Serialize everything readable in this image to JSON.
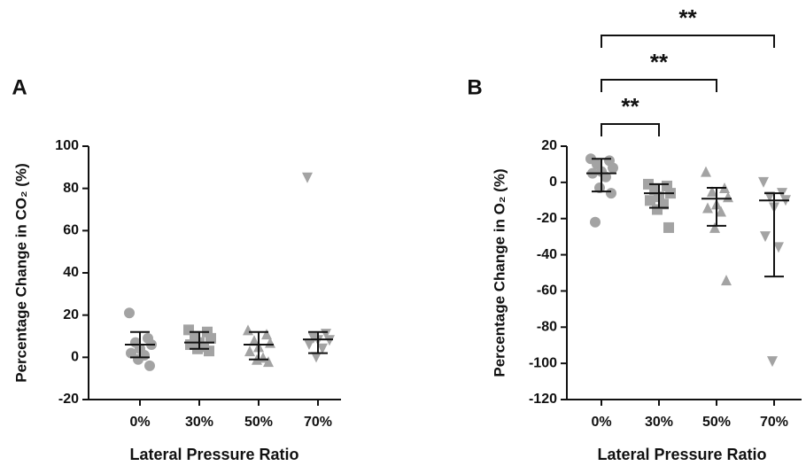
{
  "chart_data": [
    {
      "type": "dot",
      "panel_label": "A",
      "y_label": "Percentage Change in CO₂ (%)",
      "x_label": "Lateral Pressure Ratio",
      "categories": [
        "0%",
        "30%",
        "50%",
        "70%"
      ],
      "markers": [
        "circle",
        "square",
        "triangle-up",
        "triangle-down"
      ],
      "color": "#a3a3a3",
      "points": [
        [
          21,
          9,
          7,
          6,
          4,
          2,
          1,
          -1,
          -4
        ],
        [
          13,
          12,
          10,
          9,
          7,
          6,
          5,
          4,
          3
        ],
        [
          13,
          11,
          8,
          7,
          5,
          3,
          0,
          -1,
          -2
        ],
        [
          85,
          11,
          9,
          8,
          8,
          6,
          4,
          0
        ]
      ],
      "medians": [
        6,
        7,
        6,
        8.5
      ],
      "lower": [
        0,
        4,
        -1,
        2
      ],
      "upper": [
        12,
        12,
        12,
        12
      ],
      "ylim": [
        -20,
        100
      ],
      "yticks": [
        -20,
        0,
        20,
        40,
        60,
        80,
        100
      ],
      "annotations": []
    },
    {
      "type": "dot",
      "panel_label": "B",
      "y_label": "Percentage Change in O₂ (%)",
      "x_label": "Lateral Pressure Ratio",
      "categories": [
        "0%",
        "30%",
        "50%",
        "70%"
      ],
      "markers": [
        "circle",
        "square",
        "triangle-up",
        "triangle-down"
      ],
      "color": "#a3a3a3",
      "points": [
        [
          13,
          12,
          10,
          8,
          6,
          5,
          3,
          -3,
          -6,
          -22
        ],
        [
          -1,
          -2,
          -4,
          -6,
          -8,
          -10,
          -12,
          -15,
          -25
        ],
        [
          6,
          -3,
          -5,
          -8,
          -12,
          -14,
          -16,
          -25,
          -54
        ],
        [
          0,
          -6,
          -8,
          -10,
          -14,
          -30,
          -36,
          -99
        ]
      ],
      "medians": [
        5,
        -6,
        -9,
        -10
      ],
      "lower": [
        -5,
        -14,
        -24,
        -52
      ],
      "upper": [
        13,
        -1,
        -3,
        -6
      ],
      "ylim": [
        -120,
        20
      ],
      "yticks": [
        -120,
        -100,
        -80,
        -60,
        -40,
        -20,
        0,
        20
      ],
      "annotations": [
        {
          "from": 0,
          "to": 1,
          "label": "**"
        },
        {
          "from": 0,
          "to": 2,
          "label": "**"
        },
        {
          "from": 0,
          "to": 3,
          "label": "**"
        }
      ]
    }
  ]
}
